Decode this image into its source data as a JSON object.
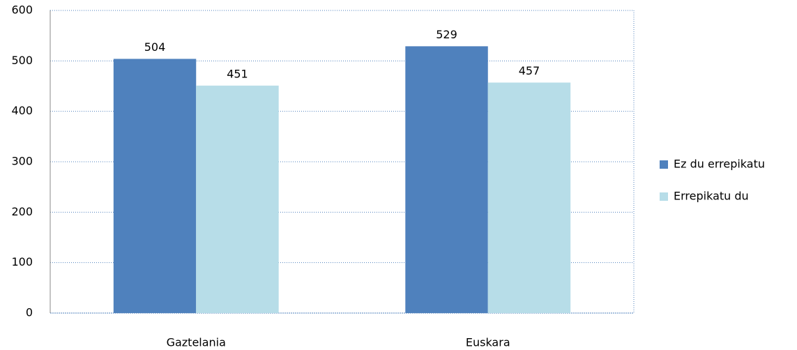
{
  "chart_data": {
    "type": "bar",
    "categories": [
      "Gaztelania",
      "Euskara"
    ],
    "series": [
      {
        "name": "Ez du errepikatu",
        "color": "#4f81bd",
        "values": [
          504,
          529
        ]
      },
      {
        "name": "Errepikatu du",
        "color": "#b7dde8",
        "values": [
          451,
          457
        ]
      }
    ],
    "ylim": [
      0,
      600
    ],
    "yticks": [
      0,
      100,
      200,
      300,
      400,
      500,
      600
    ],
    "grid": true,
    "data_labels": true,
    "legend": "right"
  }
}
